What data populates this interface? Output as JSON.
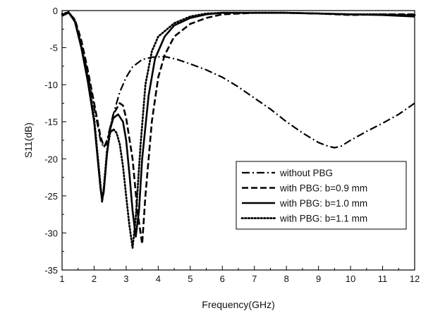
{
  "chart_data": {
    "type": "line",
    "xlabel": "Frequency(GHz)",
    "ylabel": "S11(dB)",
    "xlim": [
      1,
      12
    ],
    "ylim": [
      -35,
      0
    ],
    "x_ticks": [
      1,
      2,
      3,
      4,
      5,
      6,
      7,
      8,
      9,
      10,
      11,
      12
    ],
    "y_ticks": [
      0,
      -5,
      -10,
      -15,
      -20,
      -25,
      -30,
      -35
    ],
    "grid": false,
    "legend_position": "lower-right",
    "series": [
      {
        "name": "without PBG",
        "style": "dash-dot",
        "color": "#000000",
        "points": [
          [
            1.0,
            -0.7
          ],
          [
            1.2,
            -0.3
          ],
          [
            1.4,
            -1.5
          ],
          [
            1.6,
            -4.5
          ],
          [
            1.8,
            -8.5
          ],
          [
            2.0,
            -13
          ],
          [
            2.2,
            -17.5
          ],
          [
            2.3,
            -18.5
          ],
          [
            2.4,
            -17.5
          ],
          [
            2.6,
            -14
          ],
          [
            2.8,
            -11
          ],
          [
            3.0,
            -9
          ],
          [
            3.2,
            -7.6
          ],
          [
            3.5,
            -6.6
          ],
          [
            3.8,
            -6.3
          ],
          [
            4.2,
            -6.2
          ],
          [
            4.6,
            -6.6
          ],
          [
            5.0,
            -7.2
          ],
          [
            5.5,
            -8.0
          ],
          [
            6.0,
            -9.0
          ],
          [
            6.5,
            -10.3
          ],
          [
            7.0,
            -11.8
          ],
          [
            7.5,
            -13.3
          ],
          [
            8.0,
            -15.0
          ],
          [
            8.5,
            -16.5
          ],
          [
            9.0,
            -17.8
          ],
          [
            9.3,
            -18.3
          ],
          [
            9.5,
            -18.5
          ],
          [
            9.7,
            -18.3
          ],
          [
            10.0,
            -17.5
          ],
          [
            10.5,
            -16.3
          ],
          [
            11.0,
            -15.2
          ],
          [
            11.5,
            -14.0
          ],
          [
            12.0,
            -12.5
          ]
        ]
      },
      {
        "name": "with PBG: b=0.9 mm",
        "style": "dash",
        "color": "#000000",
        "points": [
          [
            1.0,
            -0.7
          ],
          [
            1.2,
            -0.3
          ],
          [
            1.4,
            -1.2
          ],
          [
            1.6,
            -4.0
          ],
          [
            1.8,
            -8.0
          ],
          [
            2.0,
            -12.5
          ],
          [
            2.2,
            -17.0
          ],
          [
            2.3,
            -18.3
          ],
          [
            2.4,
            -18.0
          ],
          [
            2.5,
            -16.0
          ],
          [
            2.6,
            -14.0
          ],
          [
            2.8,
            -12.5
          ],
          [
            2.9,
            -12.8
          ],
          [
            3.0,
            -14.5
          ],
          [
            3.2,
            -20
          ],
          [
            3.35,
            -27
          ],
          [
            3.5,
            -31.5
          ],
          [
            3.6,
            -25
          ],
          [
            3.8,
            -15
          ],
          [
            4.0,
            -9.0
          ],
          [
            4.2,
            -6.0
          ],
          [
            4.5,
            -3.5
          ],
          [
            5.0,
            -1.8
          ],
          [
            5.5,
            -1.0
          ],
          [
            6.0,
            -0.5
          ],
          [
            7.0,
            -0.3
          ],
          [
            8.0,
            -0.3
          ],
          [
            9.0,
            -0.4
          ],
          [
            10.0,
            -0.6
          ],
          [
            11.0,
            -0.5
          ],
          [
            12.0,
            -0.5
          ]
        ]
      },
      {
        "name": "with PBG: b=1.0 mm",
        "style": "solid",
        "color": "#000000",
        "points": [
          [
            1.0,
            -0.6
          ],
          [
            1.2,
            -0.2
          ],
          [
            1.4,
            -1.5
          ],
          [
            1.6,
            -5.0
          ],
          [
            1.8,
            -9.5
          ],
          [
            2.0,
            -15.0
          ],
          [
            2.1,
            -19.5
          ],
          [
            2.2,
            -24.0
          ],
          [
            2.25,
            -25.5
          ],
          [
            2.3,
            -24.5
          ],
          [
            2.4,
            -19.5
          ],
          [
            2.5,
            -16.0
          ],
          [
            2.6,
            -14.5
          ],
          [
            2.75,
            -14.0
          ],
          [
            2.9,
            -15.0
          ],
          [
            3.0,
            -17.5
          ],
          [
            3.1,
            -22
          ],
          [
            3.2,
            -27
          ],
          [
            3.3,
            -30.5
          ],
          [
            3.4,
            -27
          ],
          [
            3.5,
            -20
          ],
          [
            3.7,
            -11.5
          ],
          [
            3.9,
            -6.5
          ],
          [
            4.2,
            -3.5
          ],
          [
            4.5,
            -2.0
          ],
          [
            5.0,
            -1.0
          ],
          [
            5.5,
            -0.5
          ],
          [
            6.0,
            -0.3
          ],
          [
            7.0,
            -0.3
          ],
          [
            8.0,
            -0.3
          ],
          [
            9.0,
            -0.4
          ],
          [
            10.0,
            -0.5
          ],
          [
            11.0,
            -0.6
          ],
          [
            12.0,
            -0.8
          ]
        ]
      },
      {
        "name": "with PBG: b=1.1 mm",
        "style": "dot",
        "color": "#000000",
        "points": [
          [
            1.0,
            -0.5
          ],
          [
            1.2,
            -0.2
          ],
          [
            1.4,
            -1.3
          ],
          [
            1.6,
            -4.8
          ],
          [
            1.8,
            -9.0
          ],
          [
            2.0,
            -14.5
          ],
          [
            2.1,
            -19.0
          ],
          [
            2.2,
            -23.5
          ],
          [
            2.25,
            -25.8
          ],
          [
            2.3,
            -24.0
          ],
          [
            2.4,
            -19.0
          ],
          [
            2.5,
            -16.5
          ],
          [
            2.6,
            -16.0
          ],
          [
            2.7,
            -16.5
          ],
          [
            2.8,
            -18.0
          ],
          [
            2.9,
            -21.0
          ],
          [
            3.0,
            -25.0
          ],
          [
            3.1,
            -29.0
          ],
          [
            3.2,
            -32.0
          ],
          [
            3.3,
            -28.0
          ],
          [
            3.45,
            -18.0
          ],
          [
            3.6,
            -10.0
          ],
          [
            3.8,
            -5.5
          ],
          [
            4.0,
            -3.5
          ],
          [
            4.5,
            -1.7
          ],
          [
            5.0,
            -0.8
          ],
          [
            5.5,
            -0.4
          ],
          [
            6.0,
            -0.3
          ],
          [
            7.0,
            -0.3
          ],
          [
            8.0,
            -0.3
          ],
          [
            9.0,
            -0.4
          ],
          [
            10.0,
            -0.5
          ],
          [
            11.0,
            -0.5
          ],
          [
            12.0,
            -0.6
          ]
        ]
      }
    ]
  }
}
